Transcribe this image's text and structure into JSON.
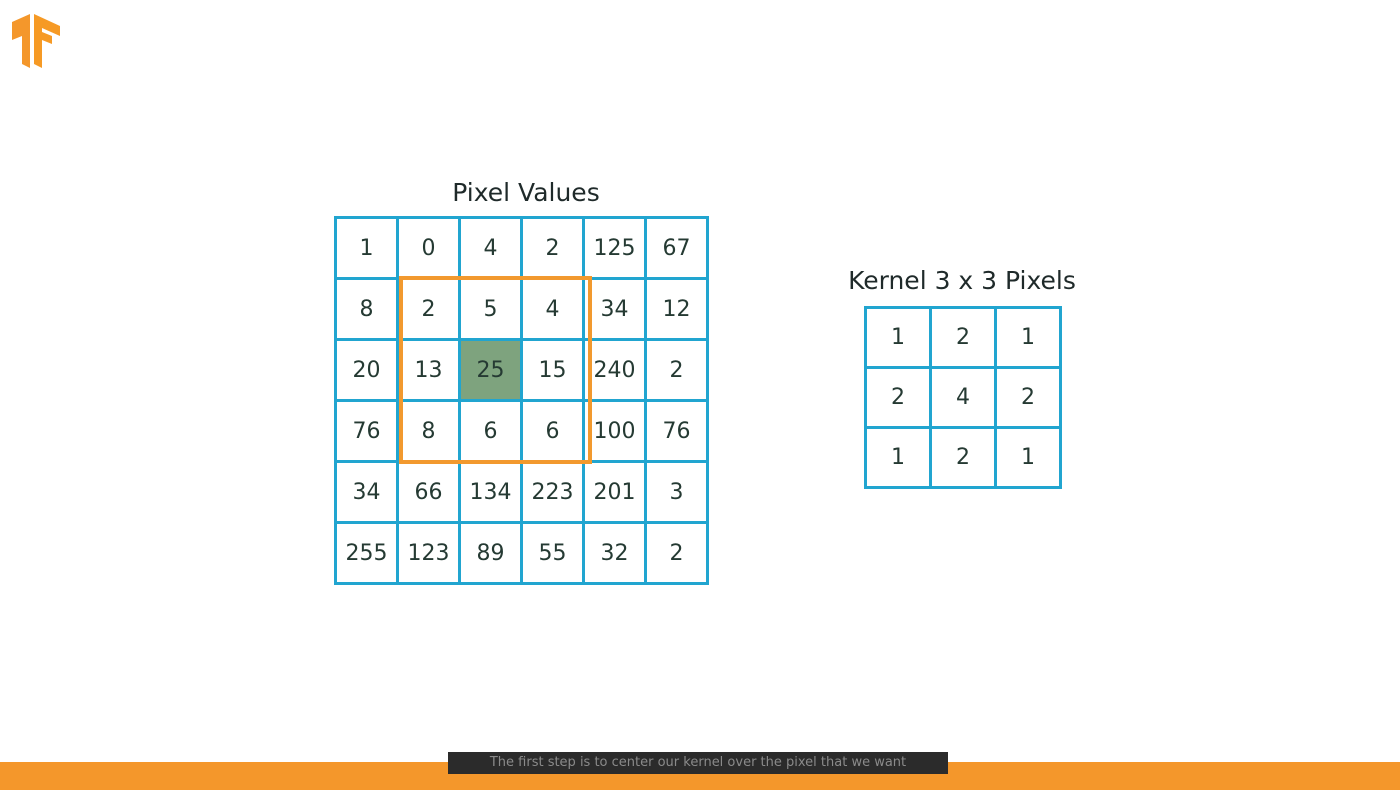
{
  "logo": {
    "icon": "tensorflow-logo-icon",
    "color": "#f4972b"
  },
  "pixel_grid": {
    "title": "Pixel Values",
    "rows": [
      [
        "1",
        "0",
        "4",
        "2",
        "125",
        "67"
      ],
      [
        "8",
        "2",
        "5",
        "4",
        "34",
        "12"
      ],
      [
        "20",
        "13",
        "25",
        "15",
        "240",
        "2"
      ],
      [
        "76",
        "8",
        "6",
        "6",
        "100",
        "76"
      ],
      [
        "34",
        "66",
        "134",
        "223",
        "201",
        "3"
      ],
      [
        "255",
        "123",
        "89",
        "55",
        "32",
        "2"
      ]
    ],
    "highlight": {
      "row": 2,
      "col": 2,
      "color": "#7ea37e"
    },
    "window": {
      "top_row": 1,
      "left_col": 1,
      "rows": 3,
      "cols": 3,
      "color": "#f2992e"
    },
    "border_color": "#21a5d0"
  },
  "kernel_grid": {
    "title": "Kernel 3 x 3 Pixels",
    "rows": [
      [
        "1",
        "2",
        "1"
      ],
      [
        "2",
        "4",
        "2"
      ],
      [
        "1",
        "2",
        "1"
      ]
    ],
    "border_color": "#21a5d0"
  },
  "caption": {
    "text": "The first step is to center our kernel over the pixel that we want"
  },
  "bottom_bar": {
    "color": "#f4972b"
  }
}
